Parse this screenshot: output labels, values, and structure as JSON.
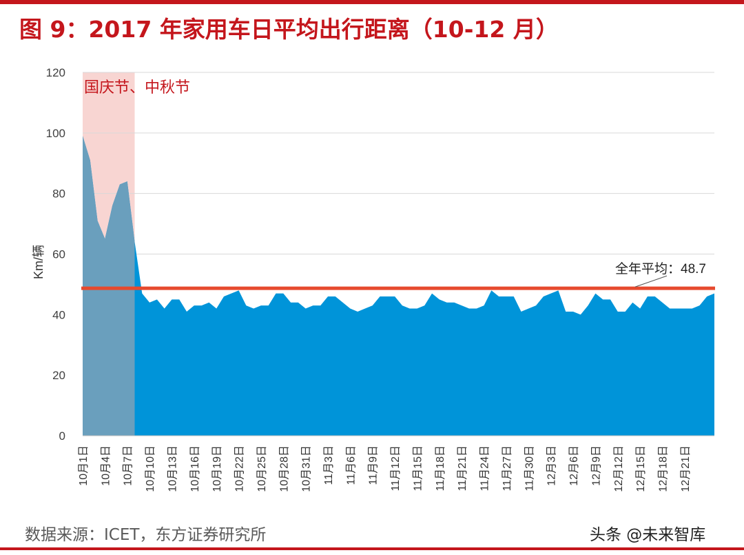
{
  "header": {
    "title": "图 9：2017 年家用车日平均出行距离（10-12 月）"
  },
  "footer": {
    "source": "数据来源：ICET，东方证券研究所",
    "watermark": "头条 @未来智库"
  },
  "colors": {
    "accent": "#c4161c",
    "area": "#0094d9",
    "holiday_area": "#6a9fbd",
    "holiday_band": "#f8d5d2",
    "avg_line": "#e64a2e"
  },
  "chart_data": {
    "type": "area",
    "ylabel": "Km/辆",
    "ylim": [
      0,
      120
    ],
    "yticks": [
      0,
      20,
      40,
      60,
      80,
      100,
      120
    ],
    "grid": true,
    "xticks": [
      "10月1日",
      "10月4日",
      "10月7日",
      "10月10日",
      "10月13日",
      "10月16日",
      "10月19日",
      "10月22日",
      "10月25日",
      "10月28日",
      "10月31日",
      "11月3日",
      "11月6日",
      "11月9日",
      "11月12日",
      "11月15日",
      "11月18日",
      "11月21日",
      "11月24日",
      "11月27日",
      "11月30日",
      "12月3日",
      "12月6日",
      "12月9日",
      "12月12日",
      "12月15日",
      "12月18日",
      "12月21日"
    ],
    "start_label": "10月1日",
    "values": [
      99,
      91,
      71,
      65,
      76,
      83,
      84,
      64,
      47,
      44,
      45,
      42,
      45,
      45,
      41,
      43,
      43,
      44,
      42,
      46,
      47,
      48,
      43,
      42,
      43,
      43,
      47,
      47,
      44,
      44,
      42,
      43,
      43,
      46,
      46,
      44,
      42,
      41,
      42,
      43,
      46,
      46,
      46,
      43,
      42,
      42,
      43,
      47,
      45,
      44,
      44,
      43,
      42,
      42,
      43,
      48,
      46,
      46,
      46,
      41,
      42,
      43,
      46,
      47,
      48,
      41,
      41,
      40,
      43,
      47,
      45,
      45,
      41,
      41,
      44,
      42,
      46,
      46,
      44,
      42,
      42,
      42,
      42,
      43,
      46,
      47
    ],
    "average": {
      "value": 48.7,
      "label": "全年平均：48.7"
    },
    "holiday": {
      "label": "国庆节、中秋节",
      "from": "10月1日",
      "to": "10月8日"
    }
  }
}
